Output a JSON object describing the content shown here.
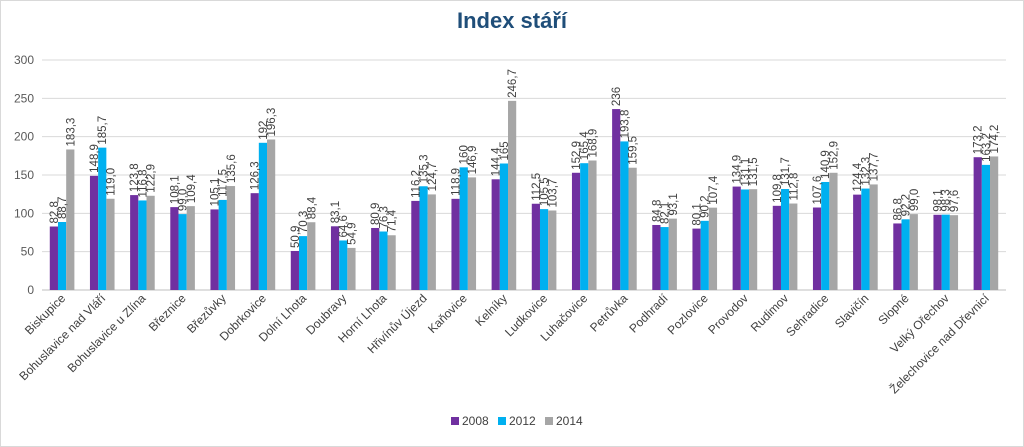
{
  "chart_data": {
    "type": "bar",
    "title": "Index stáří",
    "xlabel": "",
    "ylabel": "",
    "ylim": [
      0,
      300
    ],
    "yticks": [
      0,
      50,
      100,
      150,
      200,
      250,
      300
    ],
    "grid": true,
    "legend_position": "bottom-center",
    "categories": [
      "Biskupice",
      "Bohuslavice nad Vláří",
      "Bohuslavice u Zlína",
      "Březnice",
      "Březůvky",
      "Dobrkovice",
      "Dolní Lhota",
      "Doubravy",
      "Horní Lhota",
      "Hřivínův Újezd",
      "Kaňovice",
      "Kelníky",
      "Ludkovice",
      "Luhačovice",
      "Petrůvka",
      "Podhradí",
      "Pozlovice",
      "Provodov",
      "Rudimov",
      "Sehradice",
      "Slavičín",
      "Slopné",
      "Velký Ořechov",
      "Želechovice nad Dřevnicí"
    ],
    "series": [
      {
        "name": "2008",
        "color": "#7030a0",
        "values": [
          82.8,
          148.9,
          123.8,
          108.1,
          105.1,
          126.3,
          50.9,
          83.1,
          80.9,
          116.2,
          118.9,
          144.4,
          112.5,
          152.9,
          236,
          84.8,
          80.1,
          134.9,
          109.8,
          107.6,
          124.4,
          86.8,
          98.1,
          173.2
        ],
        "labels": [
          "82,8",
          "148,9",
          "123,8",
          "108,1",
          "105,1",
          "126,3",
          "50,9",
          "83,1",
          "80,9",
          "116,2",
          "118,9",
          "144,4",
          "112,5",
          "152,9",
          "236",
          "84,8",
          "80,1",
          "134,9",
          "109,8",
          "107,6",
          "124,4",
          "86,8",
          "98,1",
          "173,2"
        ]
      },
      {
        "name": "2012",
        "color": "#00b0f0",
        "values": [
          88.7,
          185.7,
          116.8,
          99.0,
          117.5,
          192,
          70.3,
          64.6,
          76.3,
          135.3,
          160,
          165,
          105.5,
          165.4,
          193.8,
          82.1,
          90.2,
          131.1,
          131.7,
          140.9,
          132.3,
          92.2,
          98.3,
          163.2
        ],
        "labels": [
          "88,7",
          "185,7",
          "116,8",
          "99,0",
          "117,5",
          "192",
          "70,3",
          "64,6",
          "76,3",
          "135,3",
          "160",
          "165",
          "105,5",
          "165,4",
          "193,8",
          "82,1",
          "90,2",
          "131,1",
          "131,7",
          "140,9",
          "132,3",
          "92,2",
          "98,3",
          "163,2"
        ]
      },
      {
        "name": "2014",
        "color": "#a6a6a6",
        "values": [
          183.3,
          119.0,
          122.9,
          109.4,
          135.6,
          196.3,
          88.4,
          54.9,
          71.4,
          124.7,
          146.9,
          246.7,
          103.7,
          168.9,
          159.5,
          93.1,
          107.4,
          131.5,
          112.8,
          152.9,
          137.7,
          99.0,
          97.6,
          174.2
        ],
        "labels": [
          "183,3",
          "119,0",
          "122,9",
          "109,4",
          "135,6",
          "196,3",
          "88,4",
          "54,9",
          "71,4",
          "124,7",
          "146,9",
          "246,7",
          "103,7",
          "168,9",
          "159,5",
          "93,1",
          "107,4",
          "131,5",
          "112,8",
          "152,9",
          "137,7",
          "99,0",
          "97,6",
          "174,2"
        ]
      }
    ]
  }
}
